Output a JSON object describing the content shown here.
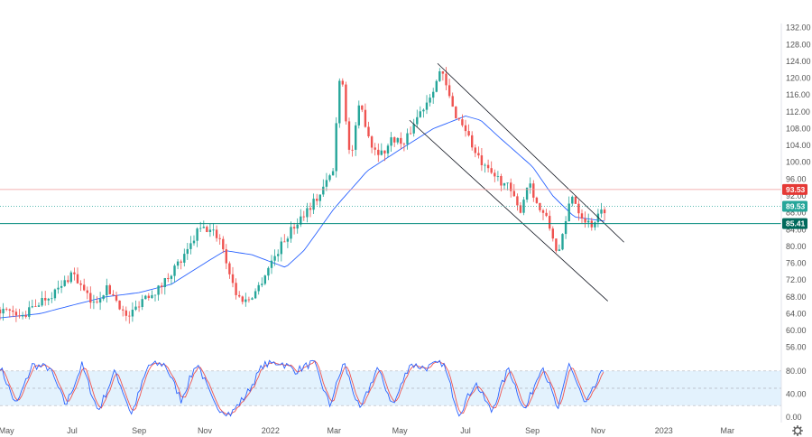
{
  "chart_data": {
    "type": "candlestick",
    "title": "",
    "colors": {
      "up": "#26a69a",
      "down": "#ef5350",
      "ma": "#2962ff",
      "channel": "#131722",
      "stoch_k": "#2962ff",
      "stoch_d": "#ef5350",
      "stoch_band": "#e3f2fd",
      "resistance": "#ef9a9a",
      "support": "#00897b",
      "price_line": "#26a69a"
    },
    "price_axis": {
      "ticks": [
        "132.00",
        "128.00",
        "124.00",
        "120.00",
        "116.00",
        "112.00",
        "108.00",
        "104.00",
        "100.00",
        "96.00",
        "92.00",
        "88.00",
        "84.00",
        "80.00",
        "76.00",
        "72.00",
        "68.00",
        "64.00",
        "60.00",
        "56.00"
      ],
      "range": [
        54,
        133
      ]
    },
    "time_axis": {
      "ticks": [
        {
          "label": "May",
          "date": "2021-05-01"
        },
        {
          "label": "Jul",
          "date": "2021-07-01"
        },
        {
          "label": "Sep",
          "date": "2021-09-01"
        },
        {
          "label": "Nov",
          "date": "2021-11-01"
        },
        {
          "label": "2022",
          "date": "2022-01-01"
        },
        {
          "label": "Mar",
          "date": "2022-03-01"
        },
        {
          "label": "May",
          "date": "2022-05-01"
        },
        {
          "label": "Jul",
          "date": "2022-07-01"
        },
        {
          "label": "Sep",
          "date": "2022-09-01"
        },
        {
          "label": "Nov",
          "date": "2022-11-01"
        },
        {
          "label": "2023",
          "date": "2023-01-01"
        },
        {
          "label": "Mar",
          "date": "2023-03-01"
        }
      ]
    },
    "price_path": [
      [
        "2021-04-25",
        65
      ],
      [
        "2021-05-15",
        63
      ],
      [
        "2021-06-01",
        67
      ],
      [
        "2021-06-20",
        70
      ],
      [
        "2021-07-01",
        74
      ],
      [
        "2021-07-10",
        70
      ],
      [
        "2021-07-20",
        66
      ],
      [
        "2021-08-01",
        70
      ],
      [
        "2021-08-10",
        68
      ],
      [
        "2021-08-20",
        63
      ],
      [
        "2021-08-25",
        64
      ],
      [
        "2021-09-05",
        68
      ],
      [
        "2021-09-20",
        70
      ],
      [
        "2021-10-01",
        74
      ],
      [
        "2021-10-15",
        78
      ],
      [
        "2021-10-26",
        84
      ],
      [
        "2021-11-05",
        84
      ],
      [
        "2021-11-15",
        82
      ],
      [
        "2021-11-26",
        72
      ],
      [
        "2021-12-01",
        68
      ],
      [
        "2021-12-10",
        67
      ],
      [
        "2021-12-20",
        70
      ],
      [
        "2022-01-01",
        76
      ],
      [
        "2022-01-15",
        82
      ],
      [
        "2022-02-01",
        88
      ],
      [
        "2022-02-15",
        92
      ],
      [
        "2022-02-28",
        98
      ],
      [
        "2022-03-07",
        124
      ],
      [
        "2022-03-16",
        100
      ],
      [
        "2022-03-25",
        114
      ],
      [
        "2022-04-05",
        104
      ],
      [
        "2022-04-15",
        102
      ],
      [
        "2022-04-25",
        106
      ],
      [
        "2022-05-05",
        104
      ],
      [
        "2022-05-15",
        110
      ],
      [
        "2022-05-25",
        114
      ],
      [
        "2022-06-05",
        120
      ],
      [
        "2022-06-08",
        122
      ],
      [
        "2022-06-20",
        112
      ],
      [
        "2022-07-01",
        108
      ],
      [
        "2022-07-10",
        102
      ],
      [
        "2022-07-20",
        98
      ],
      [
        "2022-08-01",
        96
      ],
      [
        "2022-08-10",
        94
      ],
      [
        "2022-08-20",
        88
      ],
      [
        "2022-08-29",
        96
      ],
      [
        "2022-09-05",
        90
      ],
      [
        "2022-09-15",
        86
      ],
      [
        "2022-09-25",
        78
      ],
      [
        "2022-10-01",
        84
      ],
      [
        "2022-10-07",
        93
      ],
      [
        "2022-10-15",
        88
      ],
      [
        "2022-10-25",
        85
      ],
      [
        "2022-11-07",
        89
      ]
    ],
    "ma_path": [
      [
        "2021-04-25",
        63
      ],
      [
        "2021-06-01",
        64
      ],
      [
        "2021-07-01",
        66
      ],
      [
        "2021-08-01",
        68
      ],
      [
        "2021-09-01",
        69
      ],
      [
        "2021-10-01",
        71
      ],
      [
        "2021-11-01",
        76
      ],
      [
        "2021-11-20",
        79
      ],
      [
        "2021-12-15",
        78
      ],
      [
        "2022-01-15",
        75
      ],
      [
        "2022-02-01",
        79
      ],
      [
        "2022-03-01",
        89
      ],
      [
        "2022-04-01",
        98
      ],
      [
        "2022-05-01",
        103
      ],
      [
        "2022-06-01",
        108
      ],
      [
        "2022-07-01",
        111
      ],
      [
        "2022-07-15",
        110
      ],
      [
        "2022-08-01",
        106
      ],
      [
        "2022-09-01",
        99
      ],
      [
        "2022-09-20",
        92
      ],
      [
        "2022-10-10",
        87
      ],
      [
        "2022-11-07",
        86
      ]
    ],
    "channel_lines": [
      {
        "from": [
          "2022-06-05",
          123.5
        ],
        "to": [
          "2022-11-25",
          81
        ]
      },
      {
        "from": [
          "2022-05-10",
          110
        ],
        "to": [
          "2022-11-10",
          67
        ]
      }
    ],
    "horizontal_levels": [
      {
        "label": "93.53",
        "value": 93.53,
        "style": "resistance"
      },
      {
        "label": "89.53",
        "value": 89.53,
        "style": "price"
      },
      {
        "label": "85.41",
        "value": 85.41,
        "style": "support"
      }
    ],
    "stochastic": {
      "ticks": [
        "80.00",
        "40.00",
        "0.00"
      ],
      "range": [
        0,
        100
      ],
      "band": [
        20,
        80
      ],
      "k_path": [
        [
          "2021-04-25",
          88
        ],
        [
          "2021-05-10",
          20
        ],
        [
          "2021-05-25",
          90
        ],
        [
          "2021-06-10",
          85
        ],
        [
          "2021-06-25",
          20
        ],
        [
          "2021-07-10",
          90
        ],
        [
          "2021-07-25",
          10
        ],
        [
          "2021-08-10",
          80
        ],
        [
          "2021-08-25",
          5
        ],
        [
          "2021-09-10",
          90
        ],
        [
          "2021-09-25",
          92
        ],
        [
          "2021-10-10",
          30
        ],
        [
          "2021-10-25",
          95
        ],
        [
          "2021-11-10",
          20
        ],
        [
          "2021-11-25",
          5
        ],
        [
          "2021-12-10",
          40
        ],
        [
          "2021-12-25",
          90
        ],
        [
          "2022-01-10",
          95
        ],
        [
          "2022-01-25",
          80
        ],
        [
          "2022-02-10",
          95
        ],
        [
          "2022-02-25",
          20
        ],
        [
          "2022-03-10",
          95
        ],
        [
          "2022-03-25",
          10
        ],
        [
          "2022-04-10",
          85
        ],
        [
          "2022-04-25",
          20
        ],
        [
          "2022-05-10",
          92
        ],
        [
          "2022-05-25",
          85
        ],
        [
          "2022-06-10",
          95
        ],
        [
          "2022-06-25",
          5
        ],
        [
          "2022-07-10",
          60
        ],
        [
          "2022-07-25",
          10
        ],
        [
          "2022-08-10",
          85
        ],
        [
          "2022-08-25",
          10
        ],
        [
          "2022-09-10",
          92
        ],
        [
          "2022-09-25",
          10
        ],
        [
          "2022-10-05",
          95
        ],
        [
          "2022-10-20",
          20
        ],
        [
          "2022-11-07",
          85
        ]
      ]
    }
  }
}
